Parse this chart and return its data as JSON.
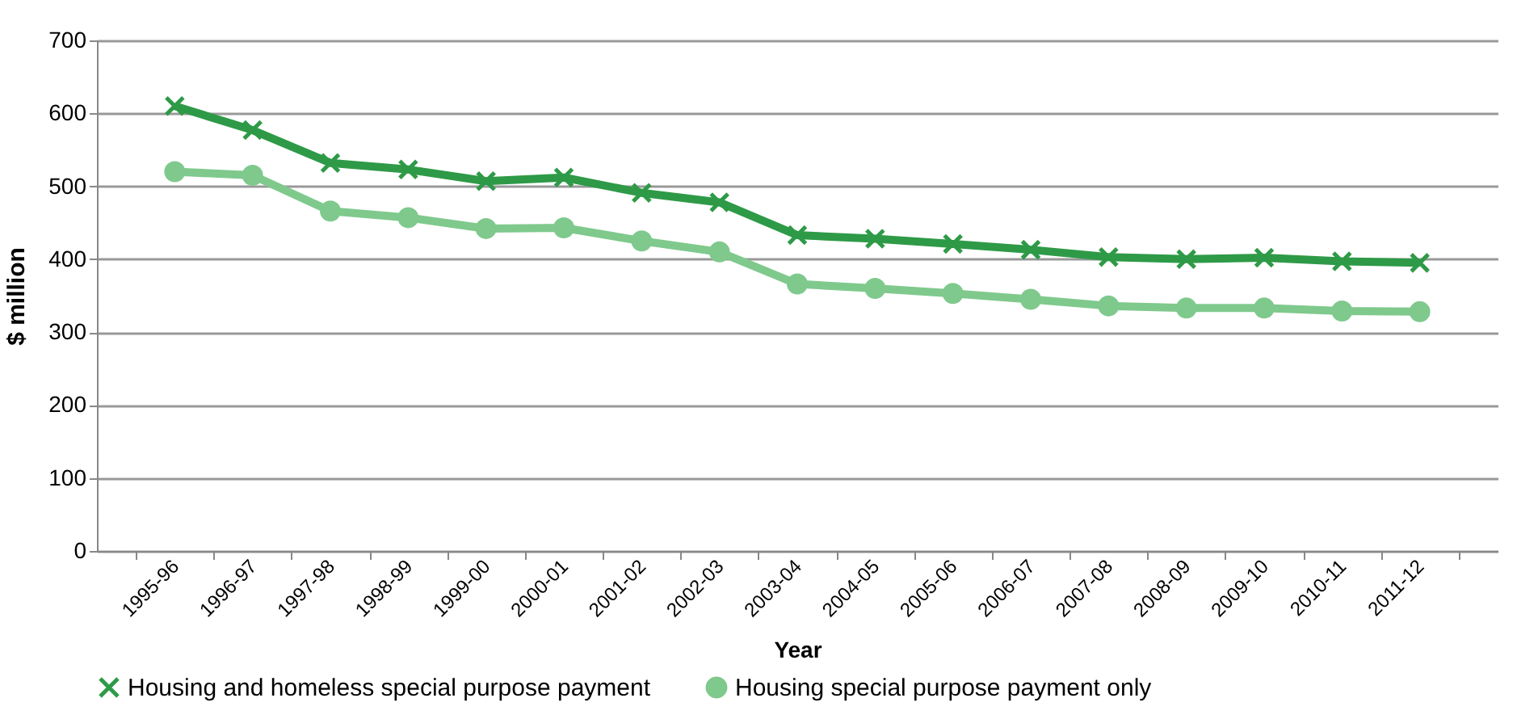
{
  "chart_data": {
    "type": "line",
    "xlabel": "Year",
    "ylabel": "$ million",
    "categories": [
      "1995-96",
      "1996-97",
      "1997-98",
      "1998-99",
      "1999-00",
      "2000-01",
      "2001-02",
      "2002-03",
      "2003-04",
      "2004-05",
      "2005-06",
      "2006-07",
      "2007-08",
      "2008-09",
      "2009-10",
      "2010-11",
      "2011-12"
    ],
    "series": [
      {
        "name": "Housing and homeless special purpose payment",
        "color": "#2e9a47",
        "marker": "cross",
        "values": [
          610,
          577,
          532,
          523,
          507,
          512,
          491,
          478,
          433,
          428,
          421,
          413,
          403,
          400,
          402,
          397,
          395
        ]
      },
      {
        "name": "Housing special purpose payment only",
        "color": "#7fc98d",
        "marker": "circle",
        "values": [
          520,
          515,
          466,
          457,
          442,
          443,
          425,
          410,
          366,
          360,
          353,
          345,
          336,
          333,
          333,
          329,
          328
        ]
      }
    ],
    "ylim": [
      0,
      700
    ],
    "yticks": [
      0,
      100,
      200,
      300,
      400,
      500,
      600,
      700
    ],
    "grid": "y",
    "legend": "bottom",
    "line_style": "solid"
  }
}
